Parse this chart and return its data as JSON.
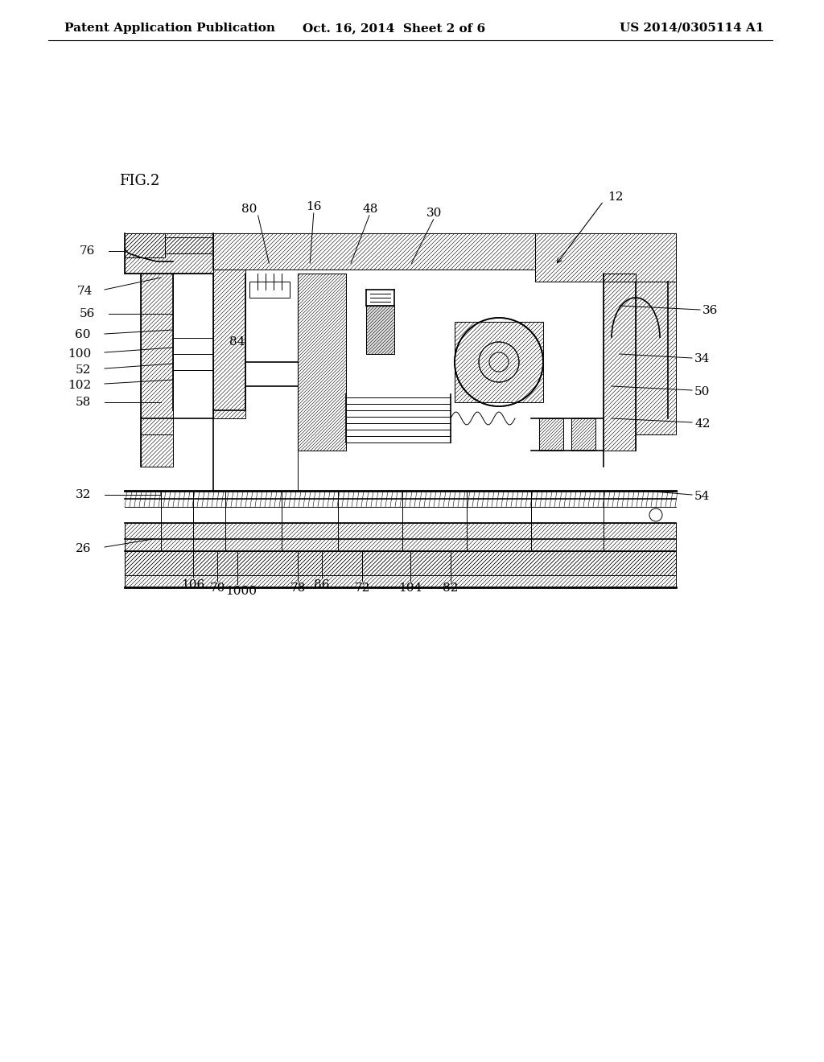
{
  "page_title_left": "Patent Application Publication",
  "page_title_center": "Oct. 16, 2014  Sheet 2 of 6",
  "page_title_right": "US 2014/0305114 A1",
  "fig_label": "FIG.2",
  "background_color": "#ffffff",
  "line_color": "#000000",
  "hatch_color": "#000000",
  "reference_numbers_left": [
    "76",
    "74",
    "56",
    "60",
    "100",
    "52",
    "102",
    "58",
    "32",
    "26"
  ],
  "reference_numbers_right": [
    "36",
    "34",
    "50",
    "42",
    "54"
  ],
  "reference_numbers_top": [
    "80",
    "16",
    "48",
    "30",
    "12"
  ],
  "reference_numbers_bottom": [
    "106",
    "70",
    "1000",
    "78",
    "86",
    "72",
    "104",
    "82"
  ],
  "reference_numbers_interior": [
    "84"
  ],
  "font_size_header": 11,
  "font_size_fig": 13,
  "font_size_ref": 11
}
